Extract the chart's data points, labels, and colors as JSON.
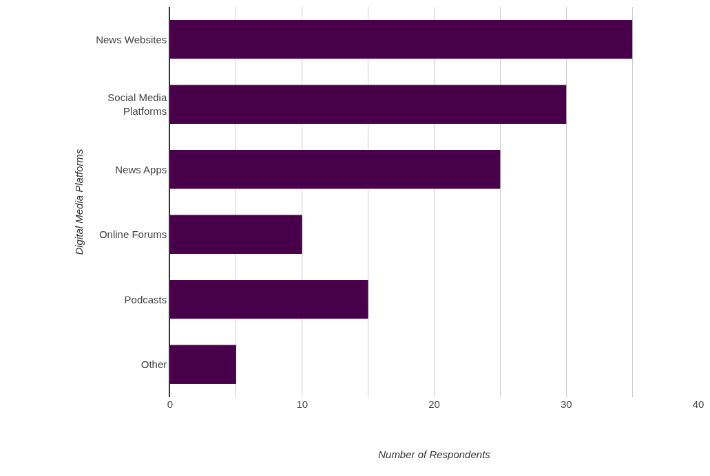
{
  "chart_data": {
    "type": "bar",
    "orientation": "horizontal",
    "xlabel": "Number of Respondents",
    "ylabel": "Digital Media Platforms",
    "categories": [
      "News Websites",
      "Social Media Platforms",
      "News Apps",
      "Online Forums",
      "Podcasts",
      "Other"
    ],
    "values": [
      35,
      30,
      25,
      10,
      15,
      5
    ],
    "color": "#48004a",
    "xlim": [
      0,
      40
    ],
    "xticks": [
      0,
      {
        "value": 5,
        "label": null
      },
      10,
      {
        "value": 15,
        "label": null
      },
      20,
      {
        "value": 25,
        "label": null
      },
      30,
      {
        "value": 35,
        "label": null
      },
      40
    ],
    "grid": "x",
    "legend": false
  }
}
